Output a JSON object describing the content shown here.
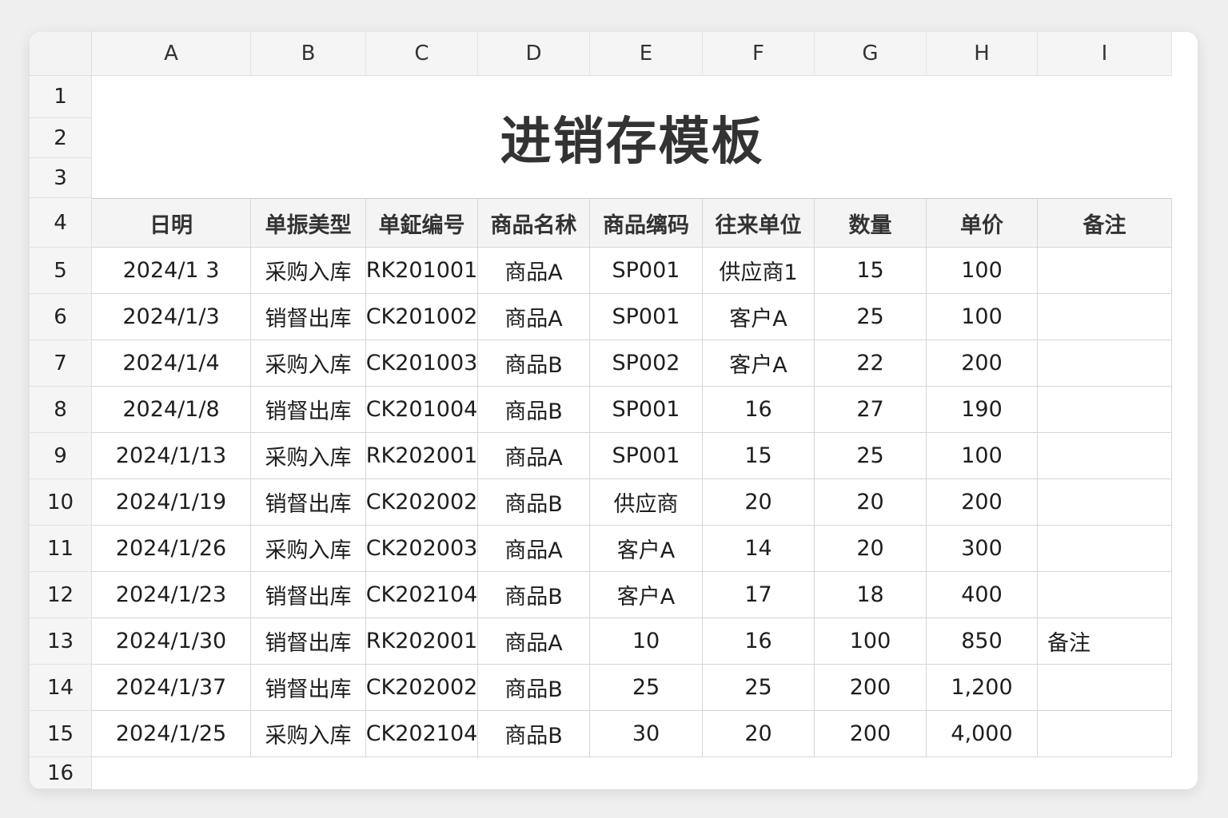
{
  "columns": [
    "A",
    "B",
    "C",
    "D",
    "E",
    "F",
    "G",
    "H",
    "I"
  ],
  "row_numbers": [
    "1",
    "2",
    "3",
    "4",
    "5",
    "6",
    "7",
    "8",
    "9",
    "10",
    "11",
    "12",
    "13",
    "14",
    "15",
    "16"
  ],
  "title": "进销存模板",
  "headers": [
    "日明",
    "单振美型",
    "单鉦编号",
    "商品名秫",
    "商品缡码",
    "往来单位",
    "数量",
    "单价",
    "备注"
  ],
  "rows": [
    [
      "2024/1 3",
      "采购入库",
      "RK201001",
      "商品A",
      "SP001",
      "供应商1",
      "15",
      "100",
      ""
    ],
    [
      "2024/1/3",
      "销督出库",
      "CK201002",
      "商品A",
      "SP001",
      "客户A",
      "25",
      "100",
      ""
    ],
    [
      "2024/1/4",
      "采购入库",
      "CK201003",
      "商品B",
      "SP002",
      "客户A",
      "22",
      "200",
      ""
    ],
    [
      "2024/1/8",
      "销督出库",
      "CK201004",
      "商品B",
      "SP001",
      "16",
      "27",
      "190",
      ""
    ],
    [
      "2024/1/13",
      "采购入库",
      "RK202001",
      "商品A",
      "SP001",
      "15",
      "25",
      "100",
      ""
    ],
    [
      "2024/1/19",
      "销督出库",
      "CK202002",
      "商品B",
      "供应商",
      "20",
      "20",
      "200",
      ""
    ],
    [
      "2024/1/26",
      "采购入库",
      "CK202003",
      "商品A",
      "客户A",
      "14",
      "20",
      "300",
      ""
    ],
    [
      "2024/1/23",
      "销督出库",
      "CK202104",
      "商品B",
      "客户A",
      "17",
      "18",
      "400",
      ""
    ],
    [
      "2024/1/30",
      "销督出库",
      "RK202001",
      "商品A",
      "10",
      "16",
      "100",
      "850",
      "备注"
    ],
    [
      "2024/1/37",
      "销督出库",
      "CK202002",
      "商品B",
      "25",
      "25",
      "200",
      "1,200",
      ""
    ],
    [
      "2024/1/25",
      "采购入库",
      "CK202104",
      "商品B",
      "30",
      "20",
      "200",
      "4,000",
      ""
    ]
  ]
}
